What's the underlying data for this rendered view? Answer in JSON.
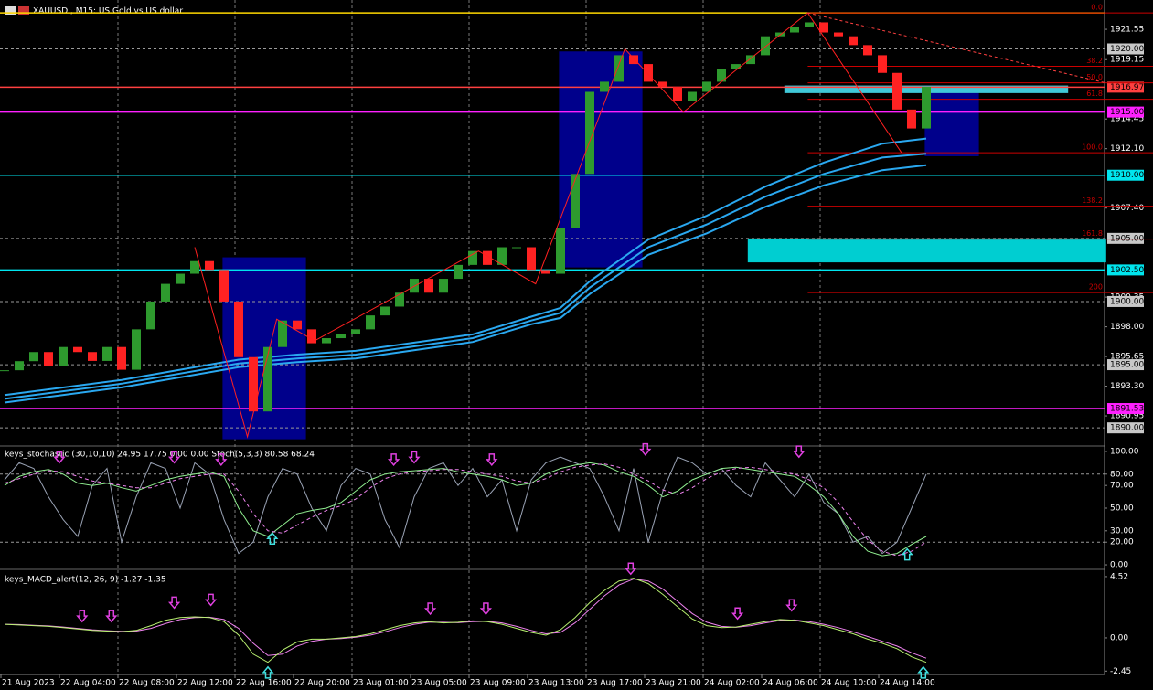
{
  "header": {
    "title": "XAUUSD., M15:  US Gold vs US dollar"
  },
  "time_labels": [
    "21 Aug 2023",
    "22 Aug 04:00",
    "22 Aug 08:00",
    "22 Aug 12:00",
    "22 Aug 16:00",
    "22 Aug 20:00",
    "23 Aug 01:00",
    "23 Aug 05:00",
    "23 Aug 09:00",
    "23 Aug 13:00",
    "23 Aug 17:00",
    "23 Aug 21:00",
    "24 Aug 02:00",
    "24 Aug 06:00",
    "24 Aug 10:00",
    "24 Aug 14:00"
  ],
  "chart_data": [
    {
      "type": "candlestick",
      "values": [
        1894.56,
        1895.28,
        1896.0,
        1894.9,
        1896.4,
        1896.0,
        1895.3,
        1896.4,
        1894.6,
        1897.8,
        1900.0,
        1901.4,
        1902.2,
        1903.2,
        1902.5,
        1900.0,
        1895.6,
        1891.3,
        1896.4,
        1898.5,
        1897.8,
        1896.7,
        1897.1,
        1897.4,
        1897.8,
        1898.9,
        1899.6,
        1900.7,
        1901.8,
        1900.7,
        1901.8,
        1902.9,
        1904.0,
        1902.9,
        1904.3,
        1904.3,
        1902.5,
        1902.2,
        1905.8,
        1910.1,
        1916.6,
        1917.4,
        1919.5,
        1918.8,
        1917.4,
        1917.0,
        1915.9,
        1916.6,
        1917.4,
        1918.4,
        1918.8,
        1919.5,
        1921.0,
        1921.3,
        1921.7,
        1922.1,
        1921.3,
        1921.0,
        1920.3,
        1919.5,
        1918.1,
        1915.2,
        1913.7,
        1917.0
      ],
      "colors": {
        "up": "#2e9a2e",
        "down": "#ff2222"
      },
      "ylim": [
        1889.0,
        1923.87
      ],
      "yticks": [
        1921.55,
        1919.15,
        1914.45,
        {
          "value": 1912.1,
          "label": "1912.10"
        },
        {
          "value": 1907.4,
          "label": "1907.40"
        },
        1900.35,
        {
          "value": 1898,
          "label": "1898.00"
        },
        1895.65,
        {
          "value": 1893.3,
          "label": "1893.30"
        },
        1890.95
      ],
      "levels": [
        {
          "value": 1922.85,
          "color": "#ffd700"
        },
        {
          "value": 1920,
          "label": "1920.00",
          "color": "#9a9a9a",
          "dash": true
        },
        {
          "value": 1916.97,
          "label": "1916.97",
          "color": "#ff4040"
        },
        {
          "value": 1915,
          "label": "1915.00",
          "color": "#ff20ff"
        },
        {
          "value": 1910,
          "label": "1910.00",
          "color": "#00e5ee"
        },
        {
          "value": 1905,
          "label": "1905.00",
          "color": "#9a9a9a",
          "dash": true
        },
        {
          "value": 1902.5,
          "label": "1902.50",
          "color": "#00e5ee"
        },
        {
          "value": 1900,
          "label": "1900.00",
          "color": "#9a9a9a",
          "dash": true
        },
        {
          "value": 1895,
          "label": "1895.00",
          "color": "#9a9a9a",
          "dash": true
        },
        {
          "value": 1891.53,
          "label": "1891.53",
          "color": "#ff20ff"
        },
        {
          "value": 1890,
          "label": "1890.00",
          "color": "#9a9a9a",
          "dash": true
        }
      ],
      "zones": [
        {
          "x": [
            14.9,
            20.6
          ],
          "y": [
            1889.1,
            1903.5
          ],
          "color": "#00008b"
        },
        {
          "x": [
            37.9,
            43.6
          ],
          "y": [
            1902.7,
            1919.8
          ],
          "color": "#00008b"
        },
        {
          "x": [
            62.9,
            66.6
          ],
          "y": [
            1911.5,
            1917.1
          ],
          "color": "#00008b"
        },
        {
          "x": [
            50.8,
            75.3
          ],
          "y": [
            1903.1,
            1905.0
          ],
          "color": "#00ced1"
        },
        {
          "x": [
            53.3,
            72.7
          ],
          "y": [
            1916.5,
            1917.1
          ],
          "color": "#40c8d8"
        }
      ],
      "fib": {
        "x": [
          54.9,
          75.0
        ],
        "prices": [
          1922.85,
          1911.78
        ],
        "color": "#cc0000",
        "levels": [
          {
            "value": 0,
            "label": "0.0"
          },
          38.2,
          {
            "value": 50,
            "label": "50.0"
          },
          61.8,
          {
            "value": 100,
            "label": "100.0"
          },
          138.2,
          161.8,
          200
        ]
      },
      "ma_x": [
        0,
        8,
        16,
        20,
        24,
        32,
        36,
        38,
        40,
        44,
        48,
        52,
        56,
        60,
        63
      ],
      "series": [
        {
          "color": "#2aa8f0",
          "values": [
            1892.6,
            1893.8,
            1895.4,
            1895.8,
            1896.1,
            1897.4,
            1898.8,
            1899.5,
            1901.6,
            1904.9,
            1906.8,
            1909.1,
            1911.0,
            1912.5,
            1912.9
          ]
        },
        {
          "color": "#2aa8f0",
          "values": [
            1892.3,
            1893.5,
            1895.1,
            1895.5,
            1895.8,
            1897.1,
            1898.5,
            1899.1,
            1901.1,
            1904.3,
            1906.1,
            1908.3,
            1910.1,
            1911.4,
            1911.7
          ]
        },
        {
          "color": "#2aa8f0",
          "values": [
            1892.0,
            1893.2,
            1894.8,
            1895.2,
            1895.5,
            1896.8,
            1898.2,
            1898.7,
            1900.6,
            1903.7,
            1905.4,
            1907.5,
            1909.2,
            1910.4,
            1910.8
          ]
        }
      ],
      "zigzag": {
        "color": "#ff2020",
        "x": [
          13.0,
          16.6,
          18.6,
          21.2,
          32.4,
          36.3,
          42.4,
          46.4,
          54.9,
          61.3
        ],
        "values": [
          1904.3,
          1889.3,
          1898.6,
          1896.9,
          1904.0,
          1901.4,
          1920.0,
          1915.0,
          1922.85,
          1911.8
        ]
      },
      "trendline": {
        "color": "#ff4040",
        "x": [
          54.9,
          75.3
        ],
        "values": [
          1922.85,
          1917.3
        ]
      }
    },
    {
      "type": "line",
      "title": "keys_stochastic (30,10,10) 24.95 17.75 0.00 0.00 Stoch(5,3,3) 80.58 68.24",
      "ylim": [
        -3.2,
        104
      ],
      "yticks": [
        {
          "value": 100,
          "label": "100.00"
        },
        {
          "value": 80,
          "label": "80.00"
        },
        {
          "value": 70,
          "label": "70.00"
        },
        {
          "value": 50,
          "label": "50.00"
        },
        {
          "value": 30,
          "label": "30.00"
        },
        {
          "value": 20,
          "label": "20.00"
        },
        {
          "value": 0,
          "label": "0.00"
        }
      ],
      "dashed_levels": [
        80,
        20
      ],
      "series": [
        {
          "color": "#9aa3b5",
          "values": [
            75,
            90,
            85,
            60,
            40,
            25,
            70,
            85,
            20,
            60,
            90,
            85,
            50,
            90,
            80,
            40,
            10,
            20,
            60,
            85,
            80,
            50,
            30,
            70,
            85,
            80,
            40,
            15,
            60,
            85,
            90,
            70,
            85,
            60,
            75,
            30,
            75,
            90,
            95,
            90,
            85,
            60,
            30,
            85,
            20,
            65,
            95,
            90,
            80,
            85,
            70,
            60,
            90,
            75,
            60,
            80,
            55,
            45,
            20,
            25,
            10,
            20,
            50,
            80
          ]
        },
        {
          "color": "#90ee90",
          "values": [
            70,
            78,
            82,
            84,
            80,
            72,
            70,
            72,
            68,
            65,
            70,
            75,
            78,
            80,
            82,
            78,
            50,
            30,
            25,
            35,
            45,
            48,
            50,
            55,
            65,
            75,
            80,
            82,
            83,
            84,
            85,
            82,
            80,
            78,
            75,
            70,
            72,
            80,
            85,
            88,
            90,
            88,
            82,
            78,
            70,
            60,
            65,
            75,
            80,
            85,
            86,
            84,
            82,
            80,
            78,
            70,
            60,
            45,
            25,
            12,
            8,
            10,
            18,
            25
          ]
        },
        {
          "color": "#ee82ee",
          "dash": true,
          "values": [
            72,
            76,
            80,
            83,
            82,
            78,
            74,
            72,
            70,
            68,
            68,
            72,
            76,
            78,
            80,
            80,
            65,
            45,
            30,
            28,
            35,
            42,
            48,
            52,
            58,
            68,
            76,
            80,
            82,
            83,
            84,
            84,
            82,
            80,
            78,
            74,
            72,
            76,
            82,
            86,
            88,
            89,
            86,
            80,
            74,
            66,
            62,
            68,
            76,
            82,
            85,
            86,
            84,
            82,
            80,
            75,
            68,
            55,
            38,
            22,
            12,
            8,
            12,
            20
          ]
        }
      ],
      "down_arrows": {
        "color": "#e040e0",
        "x": [
          3.75,
          11.6,
          14.8,
          26.6,
          28,
          33.3,
          43.8,
          54.3
        ],
        "values": [
          90,
          90,
          88,
          88,
          90,
          88,
          97,
          95
        ]
      },
      "up_arrows": {
        "color": "#40e0e0",
        "x": [
          18.3,
          61.7
        ],
        "values": [
          28,
          14
        ]
      }
    },
    {
      "type": "line",
      "title": "keys_MACD_alert(12, 26, 9) -1.27 -1.35",
      "ylim": [
        -2.7,
        4.92
      ],
      "yticks": [
        4.52,
        {
          "value": 0,
          "label": "0.00"
        },
        -2.45
      ],
      "series": [
        {
          "color": "#ee82ee",
          "values": [
            1.0,
            0.98,
            0.93,
            0.88,
            0.8,
            0.7,
            0.6,
            0.53,
            0.48,
            0.5,
            0.7,
            1.05,
            1.35,
            1.5,
            1.52,
            1.35,
            0.7,
            -0.4,
            -1.3,
            -1.2,
            -0.6,
            -0.25,
            -0.1,
            -0.05,
            0.05,
            0.2,
            0.45,
            0.75,
            1.0,
            1.15,
            1.15,
            1.12,
            1.2,
            1.22,
            1.1,
            0.85,
            0.55,
            0.3,
            0.4,
            1.1,
            2.1,
            3.1,
            3.9,
            4.35,
            4.2,
            3.6,
            2.7,
            1.8,
            1.15,
            0.85,
            0.78,
            0.9,
            1.1,
            1.28,
            1.32,
            1.2,
            1.0,
            0.75,
            0.45,
            0.1,
            -0.25,
            -0.6,
            -1.1,
            -1.5
          ]
        },
        {
          "color": "#b8f070",
          "values": [
            1.0,
            0.95,
            0.9,
            0.85,
            0.75,
            0.65,
            0.55,
            0.5,
            0.45,
            0.55,
            0.9,
            1.3,
            1.5,
            1.55,
            1.5,
            1.2,
            0.2,
            -1.2,
            -1.8,
            -0.9,
            -0.3,
            -0.1,
            -0.1,
            0.0,
            0.1,
            0.3,
            0.6,
            0.9,
            1.1,
            1.2,
            1.1,
            1.15,
            1.25,
            1.2,
            1.0,
            0.7,
            0.4,
            0.2,
            0.6,
            1.5,
            2.6,
            3.5,
            4.2,
            4.4,
            4.0,
            3.2,
            2.3,
            1.4,
            0.9,
            0.75,
            0.8,
            1.0,
            1.2,
            1.35,
            1.3,
            1.1,
            0.9,
            0.6,
            0.3,
            -0.1,
            -0.4,
            -0.8,
            -1.4,
            -1.8
          ]
        }
      ],
      "down_arrows": {
        "color": "#e040e0",
        "x": [
          5.3,
          7.3,
          11.6,
          14.1,
          29.1,
          32.9,
          42.8,
          50.1,
          53.8
        ],
        "values": [
          1.2,
          1.2,
          2.2,
          2.4,
          1.75,
          1.75,
          4.7,
          1.4,
          2.0
        ]
      },
      "up_arrows": {
        "color": "#40e0e0",
        "x": [
          18,
          62.8
        ],
        "values": [
          -2.15,
          -2.15
        ]
      }
    }
  ]
}
